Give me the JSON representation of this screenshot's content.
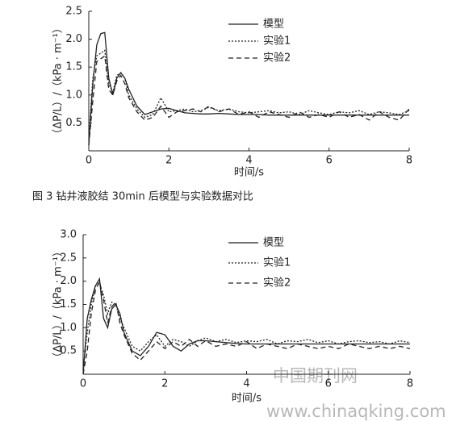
{
  "chart_data": [
    {
      "type": "line",
      "x_label": "时间/s",
      "y_label": "（ΔP/L）/（kPa · m⁻¹）",
      "x": [
        0,
        0.1,
        0.2,
        0.3,
        0.4,
        0.5,
        0.6,
        0.7,
        0.8,
        0.9,
        1.0,
        1.2,
        1.4,
        1.6,
        1.8,
        2.0,
        2.2,
        2.4,
        2.6,
        2.8,
        3.0,
        3.25,
        3.5,
        3.75,
        4.0,
        4.25,
        4.5,
        4.75,
        5.0,
        5.25,
        5.5,
        5.75,
        6.0,
        6.25,
        6.5,
        6.75,
        7.0,
        7.25,
        7.5,
        7.75,
        8.0
      ],
      "xlim": [
        0,
        8
      ],
      "xticks": [
        0,
        2,
        4,
        6,
        8
      ],
      "ylim": [
        0,
        2.5
      ],
      "yticks": [
        {
          "value": 0.5,
          "label": "0.5"
        },
        {
          "value": 1,
          "label": "1.0"
        },
        {
          "value": 1.5,
          "label": "1.5"
        },
        {
          "value": 2,
          "label": "2.0"
        },
        {
          "value": 2.5,
          "label": "2.5"
        }
      ],
      "series": [
        {
          "name": "模型",
          "color": "#222222",
          "line_style": "solid",
          "values": [
            0.1,
            1.2,
            1.9,
            2.1,
            2.12,
            1.3,
            1.0,
            1.3,
            1.4,
            1.3,
            1.1,
            0.8,
            0.65,
            0.7,
            0.75,
            0.76,
            0.72,
            0.68,
            0.67,
            0.66,
            0.66,
            0.67,
            0.66,
            0.65,
            0.65,
            0.65,
            0.64,
            0.64,
            0.64,
            0.64,
            0.64,
            0.64,
            0.64,
            0.64,
            0.64,
            0.64,
            0.64,
            0.64,
            0.64,
            0.64,
            0.64
          ]
        },
        {
          "name": "实验1",
          "color": "#222222",
          "line_style": "dotted",
          "values": [
            0.2,
            1.3,
            1.7,
            1.75,
            1.8,
            1.2,
            1.05,
            1.35,
            1.4,
            1.3,
            1.0,
            0.75,
            0.6,
            0.65,
            0.95,
            0.7,
            0.72,
            0.75,
            0.7,
            0.72,
            0.78,
            0.72,
            0.75,
            0.7,
            0.68,
            0.7,
            0.72,
            0.68,
            0.7,
            0.65,
            0.72,
            0.68,
            0.65,
            0.7,
            0.68,
            0.72,
            0.65,
            0.7,
            0.68,
            0.65,
            0.72
          ]
        },
        {
          "name": "实验2",
          "color": "#222222",
          "line_style": "dashed",
          "values": [
            0.1,
            0.9,
            1.6,
            1.65,
            1.7,
            1.1,
            1.0,
            1.25,
            1.35,
            1.2,
            0.95,
            0.7,
            0.55,
            0.6,
            0.8,
            0.6,
            0.7,
            0.72,
            0.75,
            0.7,
            0.8,
            0.7,
            0.75,
            0.65,
            0.7,
            0.6,
            0.7,
            0.65,
            0.6,
            0.7,
            0.6,
            0.65,
            0.6,
            0.7,
            0.6,
            0.65,
            0.55,
            0.7,
            0.6,
            0.55,
            0.75
          ]
        }
      ]
    },
    {
      "type": "line",
      "x_label": "时间/s",
      "y_label": "（ΔP/L）/（kPa · m⁻¹）",
      "x": [
        0,
        0.1,
        0.2,
        0.3,
        0.4,
        0.5,
        0.6,
        0.7,
        0.8,
        0.9,
        1.0,
        1.2,
        1.4,
        1.6,
        1.8,
        2.0,
        2.2,
        2.4,
        2.6,
        2.8,
        3.0,
        3.25,
        3.5,
        3.75,
        4.0,
        4.25,
        4.5,
        4.75,
        5.0,
        5.25,
        5.5,
        5.75,
        6.0,
        6.25,
        6.5,
        6.75,
        7.0,
        7.25,
        7.5,
        7.75,
        8.0
      ],
      "xlim": [
        0,
        8
      ],
      "xticks": [
        0,
        2,
        4,
        6,
        8
      ],
      "ylim": [
        0,
        3
      ],
      "yticks": [
        {
          "value": 0.5,
          "label": "0.5"
        },
        {
          "value": 1,
          "label": "1.0"
        },
        {
          "value": 1.5,
          "label": "1.5"
        },
        {
          "value": 2,
          "label": "2.0"
        },
        {
          "value": 2.5,
          "label": "2.5"
        },
        {
          "value": 3,
          "label": "3.0"
        }
      ],
      "series": [
        {
          "name": "模型",
          "color": "#222222",
          "line_style": "solid",
          "values": [
            0,
            1.2,
            1.6,
            1.9,
            2.05,
            1.2,
            1.0,
            1.4,
            1.5,
            1.3,
            0.9,
            0.5,
            0.4,
            0.6,
            0.9,
            0.85,
            0.6,
            0.5,
            0.65,
            0.72,
            0.72,
            0.7,
            0.68,
            0.66,
            0.65,
            0.65,
            0.65,
            0.65,
            0.65,
            0.65,
            0.65,
            0.65,
            0.65,
            0.65,
            0.65,
            0.65,
            0.65,
            0.65,
            0.65,
            0.65,
            0.65
          ]
        },
        {
          "name": "实验1",
          "color": "#222222",
          "line_style": "dotted",
          "values": [
            0.1,
            0.9,
            1.5,
            1.9,
            1.95,
            1.7,
            1.3,
            1.55,
            1.5,
            1.2,
            1.0,
            0.6,
            0.5,
            0.7,
            0.85,
            0.6,
            0.75,
            0.7,
            0.6,
            0.72,
            0.78,
            0.7,
            0.75,
            0.68,
            0.72,
            0.7,
            0.75,
            0.65,
            0.72,
            0.7,
            0.75,
            0.68,
            0.72,
            0.65,
            0.7,
            0.72,
            0.68,
            0.7,
            0.65,
            0.72,
            0.68
          ]
        },
        {
          "name": "实验2",
          "color": "#222222",
          "line_style": "dashed",
          "values": [
            0,
            0.5,
            1.3,
            1.8,
            2.0,
            1.6,
            1.1,
            1.45,
            1.55,
            1.1,
            0.85,
            0.45,
            0.3,
            0.5,
            0.7,
            0.55,
            0.7,
            0.6,
            0.75,
            0.6,
            0.72,
            0.6,
            0.65,
            0.6,
            0.7,
            0.55,
            0.65,
            0.6,
            0.55,
            0.65,
            0.6,
            0.55,
            0.6,
            0.55,
            0.65,
            0.6,
            0.55,
            0.6,
            0.55,
            0.6,
            0.55
          ]
        }
      ]
    }
  ],
  "caption": "图 3 钻井液胶结 30min 后模型与实验数据对比",
  "watermark": {
    "site": "中国期刊网",
    "url": "www.chinaqking.com"
  }
}
